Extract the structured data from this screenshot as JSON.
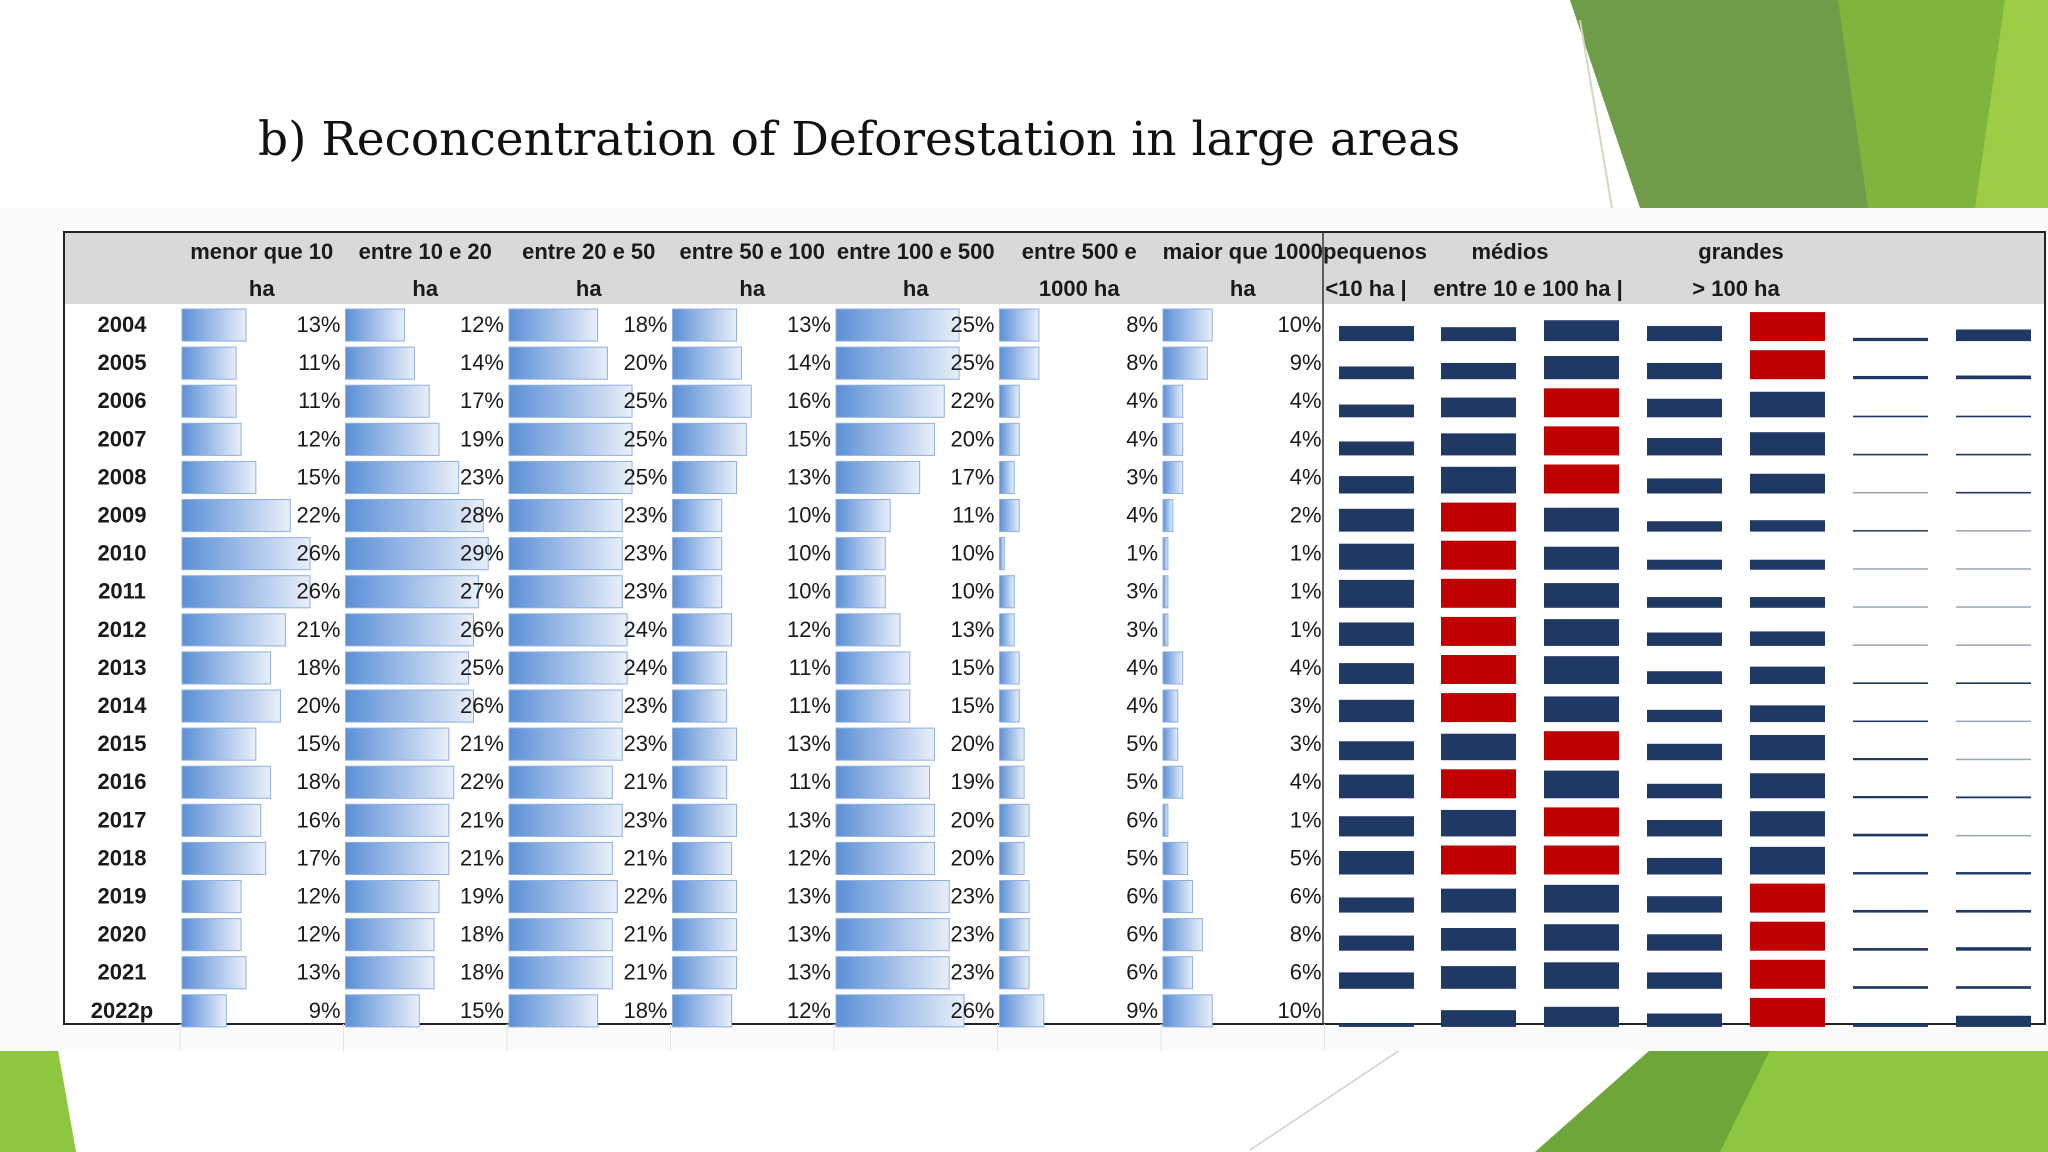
{
  "slide_title": "b) Reconcentration of Deforestation in large areas",
  "colors": {
    "bar_blue": "#5b8fd6",
    "dark_navy": "#1f3864",
    "highlight_red": "#c00000",
    "accent_green": "#7cbb34",
    "header_gray": "#d9d9d9"
  },
  "chart_data": {
    "type": "table",
    "row_labels": [
      "2004",
      "2005",
      "2006",
      "2007",
      "2008",
      "2009",
      "2010",
      "2011",
      "2012",
      "2013",
      "2014",
      "2015",
      "2016",
      "2017",
      "2018",
      "2019",
      "2020",
      "2021",
      "2022p"
    ],
    "size_classes": [
      {
        "line1": "menor que 10",
        "line2": "ha",
        "values": [
          13,
          11,
          11,
          12,
          15,
          22,
          26,
          26,
          21,
          18,
          20,
          15,
          18,
          16,
          17,
          12,
          12,
          13,
          9
        ]
      },
      {
        "line1": "entre 10 e 20",
        "line2": "ha",
        "values": [
          12,
          14,
          17,
          19,
          23,
          28,
          29,
          27,
          26,
          25,
          26,
          21,
          22,
          21,
          21,
          19,
          18,
          18,
          15
        ]
      },
      {
        "line1": "entre 20 e 50",
        "line2": "ha",
        "values": [
          18,
          20,
          25,
          25,
          25,
          23,
          23,
          23,
          24,
          24,
          23,
          23,
          21,
          23,
          21,
          22,
          21,
          21,
          18
        ]
      },
      {
        "line1": "entre 50 e 100",
        "line2": "ha",
        "values": [
          13,
          14,
          16,
          15,
          13,
          10,
          10,
          10,
          12,
          11,
          11,
          13,
          11,
          13,
          12,
          13,
          13,
          13,
          12
        ]
      },
      {
        "line1": "entre 100 e 500",
        "line2": "ha",
        "values": [
          25,
          25,
          22,
          20,
          17,
          11,
          10,
          10,
          13,
          15,
          15,
          20,
          19,
          20,
          20,
          23,
          23,
          23,
          26
        ]
      },
      {
        "line1": "entre 500 e",
        "line2": "1000 ha",
        "values": [
          8,
          8,
          4,
          4,
          3,
          4,
          1,
          3,
          3,
          4,
          4,
          5,
          5,
          6,
          5,
          6,
          6,
          6,
          9
        ]
      },
      {
        "line1": "maior que 1000",
        "line2": "ha",
        "values": [
          10,
          9,
          4,
          4,
          4,
          2,
          1,
          1,
          1,
          4,
          3,
          3,
          4,
          1,
          5,
          6,
          8,
          6,
          10
        ]
      }
    ],
    "group_headers": {
      "top": [
        "pequenos",
        "médios",
        "grandes"
      ],
      "bottom": [
        "<10 ha |",
        "entre 10 e 100 ha |",
        "> 100 ha"
      ]
    },
    "summary_series": [
      "menor que 10 ha",
      "entre 10 e 20 ha",
      "entre 20 e 50 ha",
      "entre 50 e 100 ha",
      "entre 100 e 500 ha",
      "entre 500 e 1000 ha",
      "maior que 1000 ha"
    ]
  }
}
